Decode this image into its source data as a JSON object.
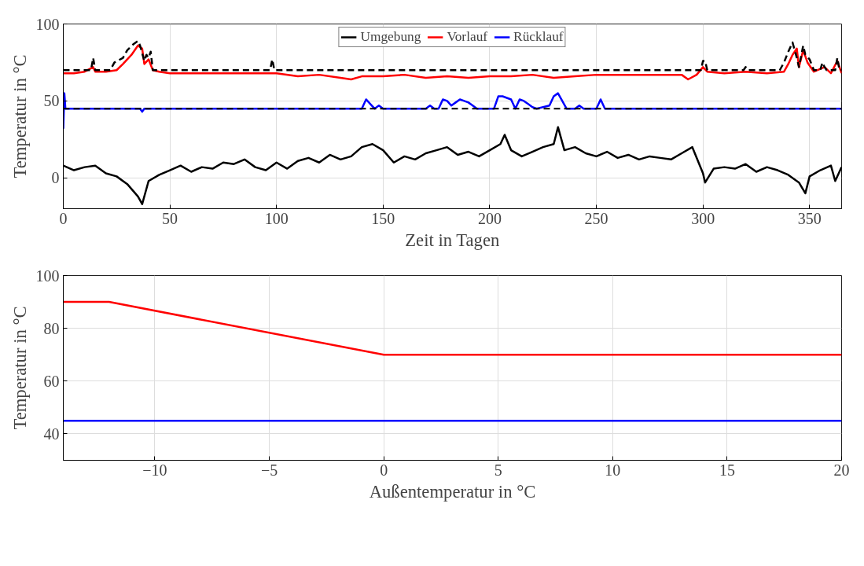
{
  "chart_data": [
    {
      "type": "line",
      "xlabel": "Zeit in Tagen",
      "ylabel": "Temperatur in °C",
      "xlim": [
        0,
        365
      ],
      "ylim": [
        -20,
        100
      ],
      "xticks": [
        0,
        50,
        100,
        150,
        200,
        250,
        300,
        350
      ],
      "yticks": [
        0,
        50,
        100
      ],
      "grid": true,
      "legend": "top",
      "line_style": "solid",
      "series": [
        {
          "name": "Umgebung",
          "color": "#000000",
          "x": [
            0,
            5,
            10,
            15,
            20,
            25,
            30,
            35,
            37,
            40,
            45,
            50,
            55,
            60,
            65,
            70,
            75,
            80,
            85,
            90,
            95,
            100,
            105,
            110,
            115,
            120,
            125,
            130,
            135,
            140,
            145,
            150,
            155,
            160,
            165,
            170,
            175,
            180,
            185,
            190,
            195,
            200,
            205,
            207,
            210,
            215,
            220,
            225,
            230,
            232,
            235,
            240,
            245,
            250,
            255,
            260,
            265,
            270,
            275,
            280,
            285,
            290,
            295,
            300,
            301,
            305,
            310,
            315,
            320,
            325,
            330,
            335,
            340,
            345,
            348,
            350,
            355,
            360,
            362,
            365
          ],
          "values": [
            8,
            5,
            7,
            8,
            3,
            1,
            -4,
            -12,
            -17,
            -2,
            2,
            5,
            8,
            4,
            7,
            6,
            10,
            9,
            12,
            7,
            5,
            10,
            6,
            11,
            13,
            10,
            15,
            12,
            14,
            20,
            22,
            18,
            10,
            14,
            12,
            16,
            18,
            20,
            15,
            17,
            14,
            18,
            22,
            28,
            18,
            14,
            17,
            20,
            22,
            33,
            18,
            20,
            16,
            14,
            17,
            13,
            15,
            12,
            14,
            13,
            12,
            16,
            20,
            3,
            -3,
            6,
            7,
            6,
            9,
            4,
            7,
            5,
            2,
            -3,
            -10,
            1,
            5,
            8,
            -2,
            7
          ]
        },
        {
          "name": "Vorlauf",
          "color": "#ff0000",
          "x": [
            0,
            5,
            10,
            14,
            15,
            20,
            25,
            28,
            32,
            35,
            37,
            38,
            40,
            42,
            45,
            50,
            60,
            70,
            80,
            90,
            100,
            110,
            120,
            130,
            135,
            140,
            150,
            160,
            170,
            180,
            190,
            200,
            210,
            220,
            230,
            240,
            250,
            260,
            270,
            280,
            290,
            293,
            297,
            300,
            302,
            310,
            320,
            330,
            338,
            340,
            342,
            344,
            345,
            347,
            349,
            352,
            357,
            360,
            363,
            365
          ],
          "values": [
            68,
            68,
            69,
            72,
            69,
            69,
            70,
            74,
            80,
            86,
            84,
            74,
            77,
            70,
            69,
            68,
            68,
            68,
            68,
            68,
            68,
            66,
            67,
            65,
            64,
            66,
            66,
            67,
            65,
            66,
            65,
            66,
            66,
            67,
            65,
            66,
            67,
            67,
            67,
            67,
            67,
            64,
            67,
            72,
            69,
            68,
            69,
            68,
            69,
            74,
            80,
            84,
            72,
            83,
            75,
            69,
            72,
            68,
            76,
            68
          ]
        },
        {
          "name": "Rücklauf",
          "color": "#0000ff",
          "x": [
            0,
            0.5,
            1,
            2,
            36,
            37,
            38,
            140,
            142,
            144,
            146,
            148,
            150,
            170,
            172,
            174,
            176,
            178,
            180,
            182,
            184,
            186,
            188,
            190,
            192,
            194,
            202,
            204,
            206,
            208,
            210,
            212,
            214,
            216,
            218,
            220,
            222,
            228,
            230,
            232,
            234,
            236,
            240,
            242,
            244,
            250,
            252,
            254,
            256,
            365
          ],
          "values": [
            32,
            55,
            45,
            45,
            45,
            43,
            45,
            45,
            51,
            48,
            45,
            47,
            45,
            45,
            47,
            45,
            45,
            51,
            50,
            47,
            49,
            51,
            50,
            49,
            47,
            45,
            45,
            53,
            53,
            52,
            51,
            45,
            51,
            50,
            48,
            46,
            45,
            47,
            53,
            55,
            50,
            45,
            45,
            47,
            45,
            45,
            51,
            45,
            45,
            45
          ]
        },
        {
          "color": "#000000",
          "line_style": "dashed",
          "x": [
            0,
            13,
            14,
            15,
            22,
            24,
            28,
            30,
            33,
            35,
            36,
            38,
            39,
            40,
            41,
            42,
            97,
            98,
            99,
            299,
            300,
            301,
            302,
            319,
            320,
            321,
            336,
            338,
            340,
            342,
            344,
            345,
            347,
            348,
            350,
            352,
            355,
            356,
            357,
            358,
            362,
            363,
            364,
            365
          ],
          "values": [
            70,
            70,
            78,
            70,
            70,
            75,
            78,
            83,
            87,
            89,
            86,
            76,
            80,
            78,
            82,
            70,
            70,
            77,
            70,
            70,
            76,
            76,
            70,
            70,
            72,
            70,
            70,
            75,
            82,
            88,
            78,
            72,
            86,
            80,
            77,
            70,
            70,
            75,
            72,
            70,
            70,
            78,
            70,
            70
          ]
        }
      ],
      "ref_lines": [
        {
          "axis": "y",
          "value": 45,
          "label": null,
          "color": "#000000",
          "line_style": "dashed"
        }
      ]
    },
    {
      "type": "line",
      "xlabel": "Außentemperatur in °C",
      "ylabel": "Temperatur in °C",
      "xlim": [
        -14,
        20
      ],
      "ylim": [
        30,
        100
      ],
      "xticks": [
        -10,
        -5,
        0,
        5,
        10,
        15,
        20
      ],
      "yticks": [
        40,
        60,
        80,
        100
      ],
      "grid": true,
      "line_style": "solid",
      "series": [
        {
          "color": "#ff0000",
          "x": [
            -14,
            -12,
            0,
            20
          ],
          "values": [
            90,
            90,
            70,
            70
          ]
        },
        {
          "color": "#0000ff",
          "x": [
            -14,
            20
          ],
          "values": [
            45,
            45
          ]
        }
      ]
    }
  ]
}
